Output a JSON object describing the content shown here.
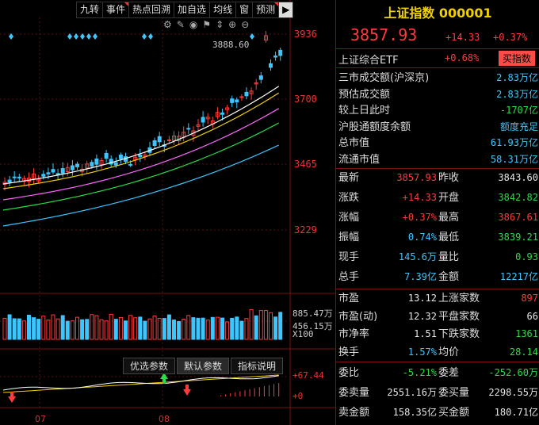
{
  "toolbar": {
    "buttons": [
      "九转",
      "事件",
      "热点回溯",
      "加自选",
      "均线",
      "窗",
      "预测"
    ],
    "play_icon": "play-icon"
  },
  "chart": {
    "price_axis": [
      "3936",
      "3700",
      "3465",
      "3229"
    ],
    "high_label": "3888.60",
    "volume_axis": [
      "885.47万",
      "456.15万",
      "X100"
    ],
    "indicator_axis": [
      "+67.44",
      "+0"
    ],
    "months": [
      "07",
      "08"
    ],
    "param_tabs": [
      "优选参数",
      "默认参数",
      "指标说明"
    ],
    "tool_icons": [
      "gear-icon",
      "brush-icon",
      "eye-icon",
      "flag-icon",
      "expand-icon",
      "zoom-in-icon",
      "zoom-out-icon"
    ]
  },
  "panel": {
    "title": "上证指数 000001",
    "price": "3857.93",
    "change": "+14.33",
    "change_pct": "+0.37%",
    "etf_label": "上证综合ETF",
    "etf_pct": "+0.68%",
    "buy_btn": "买指数",
    "rows": [
      {
        "l": "三市成交额(沪深京)",
        "r": "2.83万亿",
        "rc": "cyan"
      },
      {
        "l": "预估成交额",
        "r": "2.83万亿",
        "rc": "cyan"
      },
      {
        "l": "较上日此时",
        "r": "-1707亿",
        "rc": "green"
      },
      {
        "l": "沪股通额度余额",
        "r": "额度充足",
        "rc": "cyan"
      },
      {
        "l": "总市值",
        "r": "61.93万亿",
        "rc": "cyan"
      },
      {
        "l": "流通市值",
        "r": "58.31万亿",
        "rc": "cyan"
      }
    ],
    "quote": [
      {
        "l": "最新",
        "v": "3857.93",
        "vc": "red",
        "l2": "昨收",
        "v2": "3843.60",
        "v2c": "white"
      },
      {
        "l": "涨跌",
        "v": "+14.33",
        "vc": "red",
        "l2": "开盘",
        "v2": "3842.82",
        "v2c": "green"
      },
      {
        "l": "涨幅",
        "v": "+0.37%",
        "vc": "red",
        "l2": "最高",
        "v2": "3867.61",
        "v2c": "red"
      },
      {
        "l": "振幅",
        "v": "0.74%",
        "vc": "cyan",
        "l2": "最低",
        "v2": "3839.21",
        "v2c": "green"
      },
      {
        "l": "现手",
        "v": "145.6万",
        "vc": "cyan",
        "l2": "量比",
        "v2": "0.93",
        "v2c": "green"
      },
      {
        "l": "总手",
        "v": "7.39亿",
        "vc": "cyan",
        "l2": "金额",
        "v2": "12217亿",
        "v2c": "cyan"
      }
    ],
    "stats": [
      {
        "l": "市盈",
        "v": "13.12",
        "vc": "white",
        "l2": "上涨家数",
        "v2": "897",
        "v2c": "red"
      },
      {
        "l": "市盈(动)",
        "v": "12.32",
        "vc": "white",
        "l2": "平盘家数",
        "v2": "66",
        "v2c": "white"
      },
      {
        "l": "市净率",
        "v": "1.51",
        "vc": "white",
        "l2": "下跌家数",
        "v2": "1361",
        "v2c": "green"
      },
      {
        "l": "换手",
        "v": "1.57%",
        "vc": "cyan",
        "l2": "均价",
        "v2": "28.14",
        "v2c": "green"
      }
    ],
    "order": [
      {
        "l": "委比",
        "v": "-5.21%",
        "vc": "green",
        "l2": "委差",
        "v2": "-252.60万",
        "v2c": "green"
      },
      {
        "l": "委卖量",
        "v": "2551.16万",
        "vc": "white",
        "l2": "委买量",
        "v2": "2298.55万",
        "v2c": "white"
      },
      {
        "l": "卖金额",
        "v": "158.35亿",
        "vc": "white",
        "l2": "买金额",
        "v2": "180.71亿",
        "v2c": "white"
      }
    ],
    "colors": {
      "up": "#ff3b3b",
      "down": "#2bdc45",
      "accent": "#3cc6ff",
      "border": "#7a1010"
    }
  }
}
